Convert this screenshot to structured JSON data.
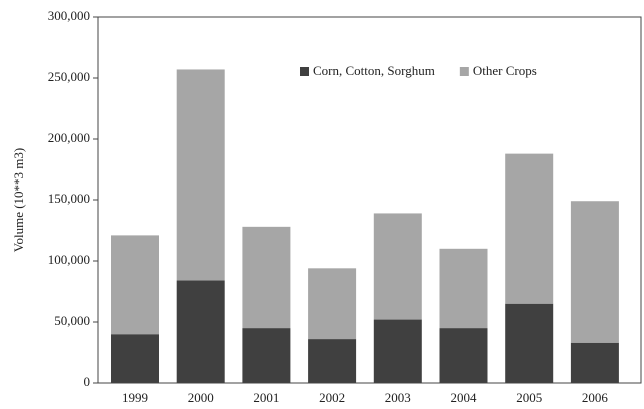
{
  "chart_data": {
    "type": "stacked_bar",
    "ylabel": "Volume (10**3 m3)",
    "categories": [
      "1999",
      "2000",
      "2001",
      "2002",
      "2003",
      "2004",
      "2005",
      "2006"
    ],
    "series": [
      {
        "name": "Corn, Cotton, Sorghum",
        "color": "#404040",
        "values": [
          40000,
          84000,
          45000,
          36000,
          52000,
          45000,
          65000,
          33000
        ]
      },
      {
        "name": "Other Crops",
        "color": "#a6a6a6",
        "values": [
          81000,
          173000,
          83000,
          58000,
          87000,
          65000,
          123000,
          116000
        ]
      }
    ],
    "ylim": [
      0,
      300000
    ],
    "yticks": [
      0,
      {
        "value": 50000,
        "label": "50,000"
      },
      {
        "value": 100000,
        "label": "100,000"
      },
      {
        "value": 150000,
        "label": "150,000"
      },
      {
        "value": 200000,
        "label": "200,000"
      },
      {
        "value": 250000,
        "label": "250,000"
      },
      {
        "value": 300000,
        "label": "300,000"
      }
    ],
    "legend": "top"
  }
}
